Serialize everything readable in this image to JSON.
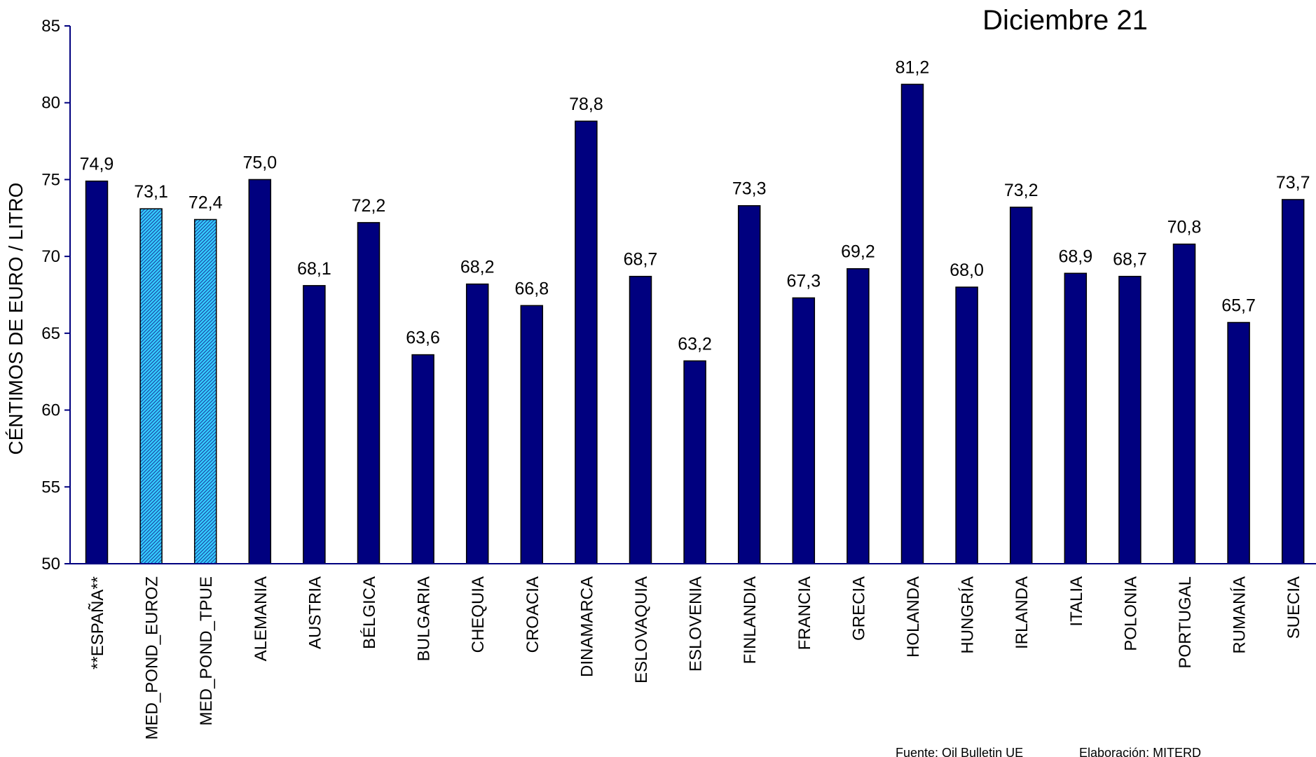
{
  "chart_data": {
    "type": "bar",
    "title": "Diciembre 21",
    "xlabel": "",
    "ylabel": "CÉNTIMOS DE EURO / LITRO",
    "ylim": [
      50,
      85
    ],
    "yticks": [
      50,
      55,
      60,
      65,
      70,
      75,
      80,
      85
    ],
    "grid": false,
    "legend": "none",
    "categories": [
      "**ESPAÑA**",
      "MED_POND_EUROZ",
      "MED_POND_TPUE",
      "ALEMANIA",
      "AUSTRIA",
      "BÉLGICA",
      "BULGARIA",
      "CHEQUIA",
      "CROACIA",
      "DINAMARCA",
      "ESLOVAQUIA",
      "ESLOVENIA",
      "FINLANDIA",
      "FRANCIA",
      "GRECIA",
      "HOLANDA",
      "HUNGRÍA",
      "IRLANDA",
      "ITALIA",
      "POLONIA",
      "PORTUGAL",
      "RUMANÍA",
      "SUECIA"
    ],
    "values": [
      74.9,
      73.1,
      72.4,
      75.0,
      68.1,
      72.2,
      63.6,
      68.2,
      66.8,
      78.8,
      68.7,
      63.2,
      73.3,
      67.3,
      69.2,
      81.2,
      68.0,
      73.2,
      68.9,
      68.7,
      70.8,
      65.7,
      73.7
    ],
    "data_labels": [
      "74,9",
      "73,1",
      "72,4",
      "75,0",
      "68,1",
      "72,2",
      "63,6",
      "68,2",
      "66,8",
      "78,8",
      "68,7",
      "63,2",
      "73,3",
      "67,3",
      "69,2",
      "81,2",
      "68,0",
      "73,2",
      "68,9",
      "68,7",
      "70,8",
      "65,7",
      "73,7"
    ],
    "highlighted": [
      "MED_POND_EUROZ",
      "MED_POND_TPUE"
    ],
    "colors": {
      "bar": "#00007F",
      "highlight": "#33CCFF",
      "axis": "#00007F"
    }
  },
  "footer": {
    "source": "Fuente: Oil Bulletin UE",
    "credit": "Elaboración: MITERD"
  }
}
